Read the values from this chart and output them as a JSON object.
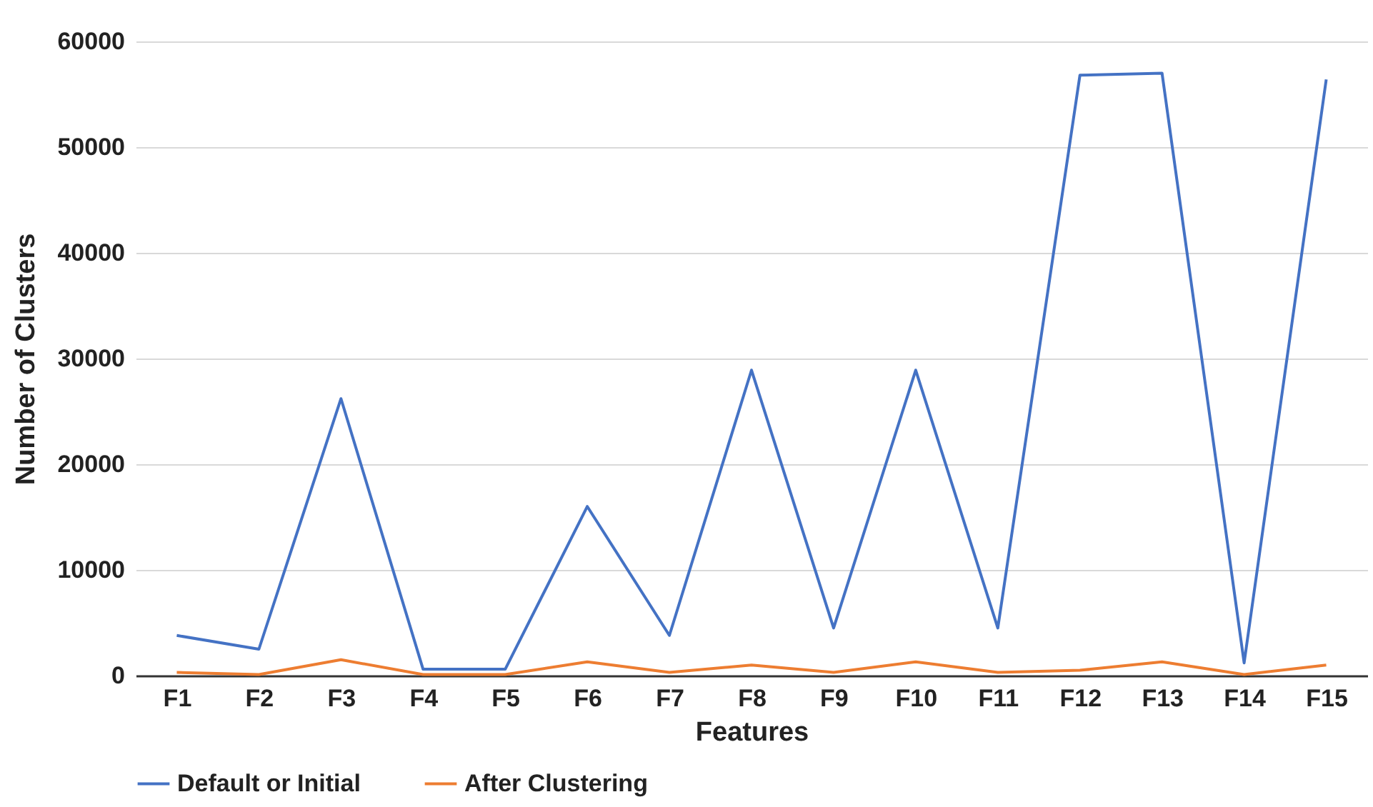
{
  "chart_data": {
    "type": "line",
    "xlabel": "Features",
    "ylabel": "Number of Clusters",
    "categories": [
      "F1",
      "F2",
      "F3",
      "F4",
      "F5",
      "F6",
      "F7",
      "F8",
      "F9",
      "F10",
      "F11",
      "F12",
      "F13",
      "F14",
      "F15"
    ],
    "series": [
      {
        "name": "Default or Initial",
        "color": "#4472c4",
        "values": [
          3800,
          2500,
          26200,
          600,
          600,
          16000,
          3800,
          28900,
          4500,
          28900,
          4500,
          56800,
          57000,
          1200,
          56400
        ]
      },
      {
        "name": "After Clustering",
        "color": "#ed7d31",
        "values": [
          300,
          100,
          1500,
          100,
          100,
          1300,
          300,
          1000,
          300,
          1300,
          300,
          500,
          1300,
          100,
          1000
        ]
      }
    ],
    "ylim": [
      0,
      60000
    ],
    "yticks": [
      0,
      10000,
      20000,
      30000,
      40000,
      50000,
      60000
    ],
    "grid": "y",
    "legend": "bottom",
    "marker": "none",
    "line_style": "solid"
  }
}
